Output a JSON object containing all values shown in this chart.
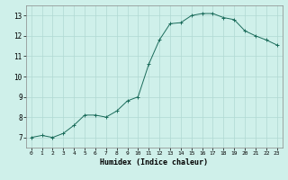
{
  "xlabel": "Humidex (Indice chaleur)",
  "ylabel": "",
  "background_color": "#cff0ea",
  "grid_color": "#b0d8d2",
  "line_color": "#1a6b5a",
  "marker_color": "#1a6b5a",
  "xlim": [
    -0.5,
    23.5
  ],
  "ylim": [
    6.5,
    13.5
  ],
  "xticks": [
    0,
    1,
    2,
    3,
    4,
    5,
    6,
    7,
    8,
    9,
    10,
    11,
    12,
    13,
    14,
    15,
    16,
    17,
    18,
    19,
    20,
    21,
    22,
    23
  ],
  "yticks": [
    7,
    8,
    9,
    10,
    11,
    12,
    13
  ],
  "x": [
    0,
    1,
    2,
    3,
    4,
    5,
    6,
    7,
    8,
    9,
    10,
    11,
    12,
    13,
    14,
    15,
    16,
    17,
    18,
    19,
    20,
    21,
    22,
    23
  ],
  "y": [
    7.0,
    7.1,
    7.0,
    7.2,
    7.6,
    8.1,
    8.1,
    8.0,
    8.3,
    8.8,
    9.0,
    10.6,
    11.8,
    12.6,
    12.65,
    13.0,
    13.1,
    13.1,
    12.9,
    12.8,
    12.25,
    12.0,
    11.8,
    11.55
  ]
}
